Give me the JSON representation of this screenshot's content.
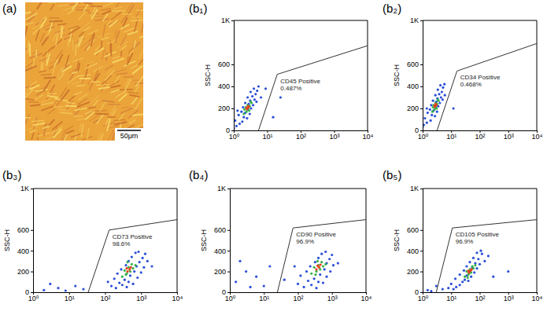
{
  "image": {
    "title": "(a)",
    "scale_bar": "50μm"
  },
  "chart_data": [
    {
      "type": "scatter",
      "title": "(b₁)",
      "ylabel": "SSC-H",
      "log": "x",
      "xlim": [
        1,
        10000
      ],
      "ylim": [
        0,
        1000
      ],
      "xticks": [
        {
          "value": 1,
          "label": "10⁰"
        },
        {
          "value": 10,
          "label": "10¹"
        },
        {
          "value": 100,
          "label": "10²"
        },
        {
          "value": 1000,
          "label": "10³"
        },
        {
          "value": 10000,
          "label": "10⁴"
        }
      ],
      "yticks": [
        0,
        200,
        400,
        600,
        {
          "value": 1000,
          "label": "1K"
        }
      ],
      "annotations": [
        "CD45 Positive",
        "0.487%"
      ],
      "gate": {
        "x": [
          5.5,
          20,
          10000
        ],
        "y": [
          0,
          510,
          770
        ]
      },
      "series": [
        {
          "color": "#2b4fd8",
          "x": [
            1.2,
            1.5,
            1.1,
            1.8,
            2.0,
            1.4,
            2.5,
            1.7,
            2.2,
            3.0,
            2.6,
            1.9,
            3.3,
            2.8,
            2.2,
            3.8,
            3.1,
            4.2,
            2.6,
            3.6,
            4.5,
            3.2,
            5.0,
            4.0,
            5.5,
            1.0,
            1.3,
            4.8,
            6.5,
            9,
            25,
            15
          ],
          "values": [
            40,
            60,
            90,
            80,
            120,
            140,
            110,
            170,
            160,
            150,
            190,
            210,
            200,
            240,
            250,
            230,
            270,
            280,
            300,
            310,
            330,
            350,
            360,
            380,
            400,
            20,
            180,
            260,
            300,
            380,
            300,
            120
          ]
        },
        {
          "color": "#36b34a",
          "x": [
            2.0,
            2.4,
            2.7,
            2.3,
            3.0,
            2.6,
            3.4,
            2.9,
            2.1,
            3.2
          ],
          "values": [
            150,
            170,
            200,
            210,
            220,
            230,
            250,
            180,
            190,
            260
          ]
        },
        {
          "color": "#e8411c",
          "x": [
            2.5,
            2.8,
            2.4,
            2.7
          ],
          "values": [
            195,
            210,
            205,
            220
          ]
        }
      ]
    },
    {
      "type": "scatter",
      "title": "(b₂)",
      "ylabel": "SSC-H",
      "log": "x",
      "xlim": [
        1,
        10000
      ],
      "ylim": [
        0,
        1000
      ],
      "xticks": [
        {
          "value": 1,
          "label": "10⁰"
        },
        {
          "value": 10,
          "label": "10¹"
        },
        {
          "value": 100,
          "label": "10²"
        },
        {
          "value": 1000,
          "label": "10³"
        },
        {
          "value": 10000,
          "label": "10⁴"
        }
      ],
      "yticks": [
        0,
        200,
        400,
        600,
        {
          "value": 1000,
          "label": "1K"
        }
      ],
      "annotations": [
        "CD34 Positive",
        "0.468%"
      ],
      "gate": {
        "x": [
          3.2,
          16,
          10000
        ],
        "y": [
          0,
          540,
          790
        ]
      },
      "series": [
        {
          "color": "#2b4fd8",
          "x": [
            1.1,
            1.4,
            1.2,
            1.9,
            2.1,
            1.5,
            2.7,
            1.8,
            2.4,
            3.2,
            2.8,
            2.0,
            3.5,
            3.0,
            2.3,
            4.0,
            3.3,
            4.4,
            2.8,
            3.8,
            4.7,
            3.4,
            5.2,
            4.2,
            5.8,
            1.0,
            1.4,
            5.0,
            6.0,
            12
          ],
          "values": [
            50,
            70,
            110,
            90,
            140,
            160,
            130,
            190,
            180,
            170,
            210,
            230,
            220,
            260,
            270,
            250,
            290,
            300,
            320,
            330,
            350,
            370,
            390,
            410,
            420,
            30,
            200,
            280,
            320,
            200
          ]
        },
        {
          "color": "#36b34a",
          "x": [
            2.2,
            2.6,
            2.9,
            2.4,
            3.2,
            2.8,
            3.6,
            3.1,
            2.3,
            3.4
          ],
          "values": [
            170,
            190,
            220,
            230,
            240,
            250,
            270,
            200,
            210,
            280
          ]
        },
        {
          "color": "#e8411c",
          "x": [
            2.7,
            3.0,
            2.6,
            2.9
          ],
          "values": [
            215,
            230,
            225,
            240
          ]
        }
      ]
    },
    {
      "type": "scatter",
      "title": "(b₃)",
      "ylabel": "SSC-H",
      "log": "x",
      "xlim": [
        1,
        10000
      ],
      "ylim": [
        0,
        1000
      ],
      "xticks": [
        {
          "value": 1,
          "label": "10⁰"
        },
        {
          "value": 10,
          "label": "10¹"
        },
        {
          "value": 100,
          "label": "10²"
        },
        {
          "value": 1000,
          "label": "10³"
        },
        {
          "value": 10000,
          "label": "10⁴"
        }
      ],
      "yticks": [
        0,
        200,
        400,
        600,
        {
          "value": 1000,
          "label": "1K"
        }
      ],
      "annotations": [
        "CD73 Positive",
        "98.6%"
      ],
      "gate": {
        "x": [
          34,
          130,
          10000
        ],
        "y": [
          0,
          600,
          700
        ]
      },
      "series": [
        {
          "color": "#2b4fd8",
          "x": [
            150,
            200,
            250,
            300,
            180,
            350,
            450,
            600,
            220,
            500,
            800,
            280,
            650,
            1000,
            380,
            750,
            1200,
            450,
            900,
            550,
            1100,
            700,
            1300,
            850,
            120,
            1500,
            400,
            2000,
            2,
            5,
            8,
            15,
            3,
            25
          ],
          "values": [
            60,
            40,
            90,
            70,
            130,
            120,
            100,
            80,
            180,
            160,
            140,
            220,
            200,
            190,
            260,
            250,
            240,
            300,
            290,
            340,
            330,
            380,
            370,
            390,
            100,
            300,
            50,
            250,
            20,
            40,
            15,
            60,
            80,
            30
          ]
        },
        {
          "color": "#36b34a",
          "x": [
            300,
            400,
            350,
            500,
            450,
            600,
            380,
            550,
            700,
            420
          ],
          "values": [
            150,
            180,
            210,
            200,
            240,
            230,
            170,
            270,
            260,
            290
          ]
        },
        {
          "color": "#e8411c",
          "x": [
            420,
            480,
            400,
            520
          ],
          "values": [
            200,
            220,
            230,
            240
          ]
        }
      ]
    },
    {
      "type": "scatter",
      "title": "(b₄)",
      "ylabel": "SSC-H",
      "log": "x",
      "xlim": [
        1,
        10000
      ],
      "ylim": [
        0,
        1000
      ],
      "xticks": [
        {
          "value": 1,
          "label": "10⁰"
        },
        {
          "value": 10,
          "label": "10¹"
        },
        {
          "value": 100,
          "label": "10²"
        },
        {
          "value": 1000,
          "label": "10³"
        },
        {
          "value": 10000,
          "label": "10⁴"
        }
      ],
      "yticks": [
        0,
        200,
        400,
        600,
        {
          "value": 1000,
          "label": "1K"
        }
      ],
      "annotations": [
        "CD90 Positive",
        "96.9%"
      ],
      "gate": {
        "x": [
          25,
          72,
          10000
        ],
        "y": [
          0,
          620,
          700
        ]
      },
      "series": [
        {
          "color": "#2b4fd8",
          "x": [
            100,
            150,
            200,
            250,
            120,
            300,
            400,
            550,
            180,
            450,
            700,
            230,
            600,
            900,
            320,
            700,
            1100,
            400,
            850,
            500,
            1000,
            650,
            80,
            1500,
            350,
            1.5,
            3,
            6,
            10,
            2,
            4,
            15,
            40
          ],
          "values": [
            80,
            50,
            110,
            70,
            160,
            130,
            100,
            90,
            200,
            170,
            150,
            250,
            220,
            200,
            290,
            280,
            260,
            330,
            320,
            370,
            360,
            390,
            250,
            280,
            40,
            100,
            200,
            150,
            60,
            300,
            50,
            250,
            120
          ]
        },
        {
          "color": "#36b34a",
          "x": [
            250,
            350,
            300,
            450,
            400,
            550,
            330,
            500,
            650,
            380
          ],
          "values": [
            180,
            200,
            240,
            220,
            260,
            250,
            170,
            290,
            270,
            300
          ]
        },
        {
          "color": "#e8411c",
          "x": [
            350,
            420,
            380,
            460
          ],
          "values": [
            220,
            240,
            255,
            265
          ]
        }
      ]
    },
    {
      "type": "scatter",
      "title": "(b₅)",
      "ylabel": "SSC-H",
      "log": "x",
      "xlim": [
        1,
        10000
      ],
      "ylim": [
        0,
        1000
      ],
      "xticks": [
        {
          "value": 1,
          "label": "10⁰"
        },
        {
          "value": 10,
          "label": "10¹"
        },
        {
          "value": 100,
          "label": "10²"
        },
        {
          "value": 1000,
          "label": "10³"
        },
        {
          "value": 10000,
          "label": "10⁴"
        }
      ],
      "yticks": [
        0,
        200,
        400,
        600,
        {
          "value": 1000,
          "label": "1K"
        }
      ],
      "annotations": [
        "CD105 Positive",
        "96.9%"
      ],
      "gate": {
        "x": [
          3,
          11,
          10000
        ],
        "y": [
          0,
          620,
          700
        ]
      },
      "series": [
        {
          "color": "#2b4fd8",
          "x": [
            12,
            15,
            10,
            20,
            25,
            14,
            30,
            40,
            20,
            35,
            50,
            28,
            45,
            65,
            35,
            55,
            80,
            45,
            70,
            100,
            60,
            90,
            80,
            120,
            110,
            150,
            200,
            1.5,
            3,
            5,
            8,
            2,
            300,
            1000
          ],
          "values": [
            30,
            50,
            80,
            70,
            100,
            130,
            120,
            110,
            170,
            160,
            150,
            210,
            200,
            190,
            250,
            240,
            230,
            290,
            280,
            270,
            330,
            320,
            380,
            370,
            400,
            300,
            350,
            20,
            60,
            30,
            40,
            10,
            150,
            200
          ]
        },
        {
          "color": "#36b34a",
          "x": [
            30,
            40,
            35,
            50,
            45,
            60,
            38,
            55,
            70,
            42
          ],
          "values": [
            150,
            170,
            200,
            190,
            220,
            230,
            140,
            250,
            260,
            180
          ]
        },
        {
          "color": "#e8411c",
          "x": [
            42,
            48,
            40,
            52
          ],
          "values": [
            190,
            210,
            205,
            220
          ]
        }
      ]
    }
  ]
}
